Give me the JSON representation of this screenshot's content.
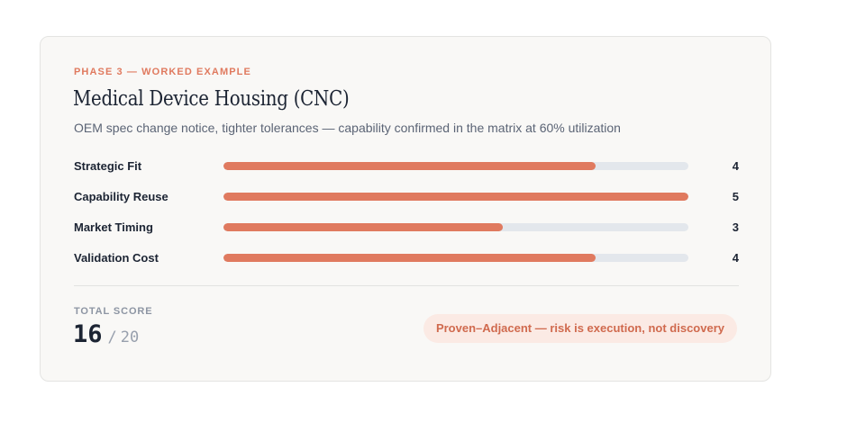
{
  "card": {
    "eyebrow": "PHASE 3 — WORKED EXAMPLE",
    "title": "Medical Device Housing (CNC)",
    "subtitle": "OEM spec change notice, tighter tolerances — capability confirmed in the matrix at 60% utilization"
  },
  "criteria": [
    {
      "label": "Strategic Fit",
      "value": "4",
      "fraction": 0.8
    },
    {
      "label": "Capability Reuse",
      "value": "5",
      "fraction": 1.0
    },
    {
      "label": "Market Timing",
      "value": "3",
      "fraction": 0.6
    },
    {
      "label": "Validation Cost",
      "value": "4",
      "fraction": 0.8
    }
  ],
  "total": {
    "label": "TOTAL SCORE",
    "score": "16",
    "separator": "/",
    "max": "20"
  },
  "verdict": "Proven–Adjacent — risk is execution, not discovery",
  "colors": {
    "accent": "#e07a5f",
    "track": "#e3e7ec",
    "verdict_bg": "#fbeae4"
  }
}
